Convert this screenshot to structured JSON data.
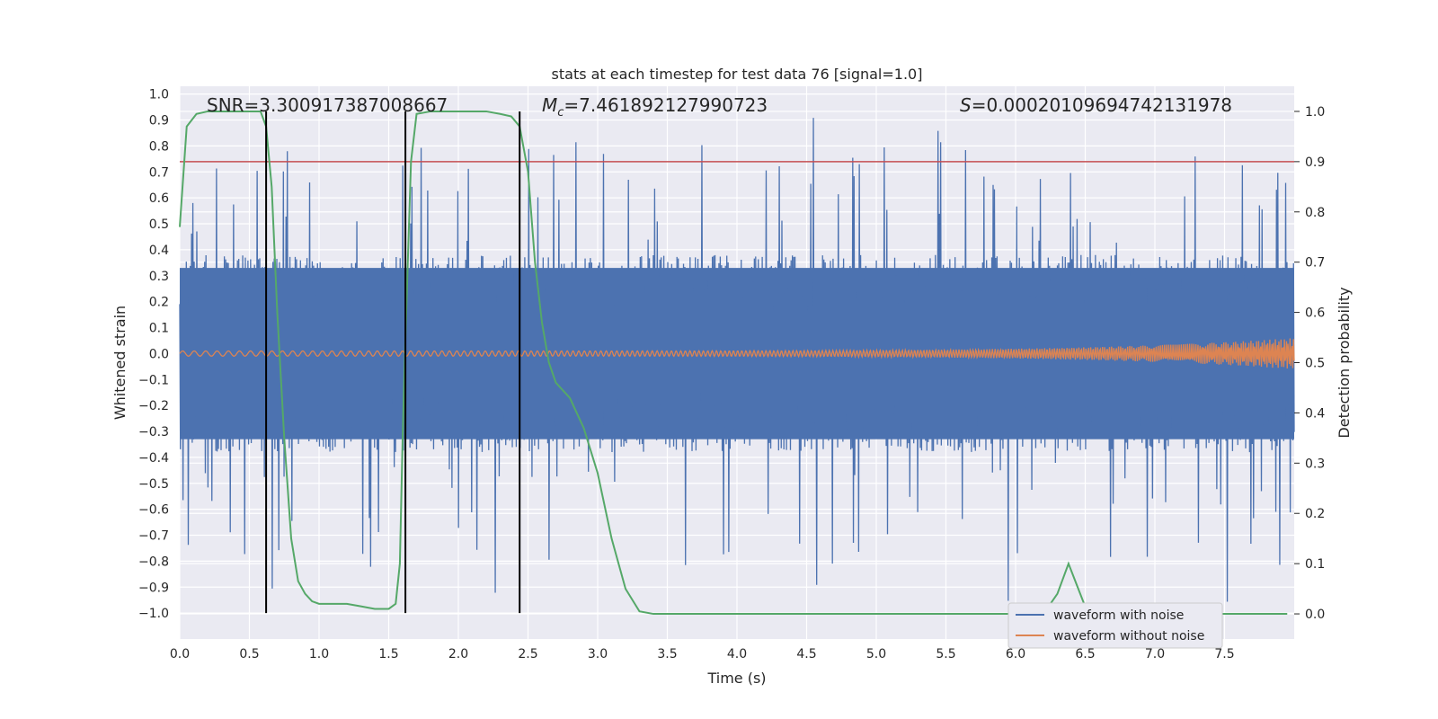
{
  "chart_data": {
    "type": "line",
    "title": "stats at each timestep for test data 76 [signal=1.0]",
    "xlabel": "Time (s)",
    "ylabel_left": "Whitened strain",
    "ylabel_right": "Detection probability",
    "xlim": [
      0.0,
      8.0
    ],
    "ylim_left": [
      -1.1,
      1.03
    ],
    "ylim_right": [
      -0.05,
      1.05
    ],
    "x_ticks": [
      "0.0",
      "0.5",
      "1.0",
      "1.5",
      "2.0",
      "2.5",
      "3.0",
      "3.5",
      "4.0",
      "4.5",
      "5.0",
      "5.5",
      "6.0",
      "6.5",
      "7.0",
      "7.5"
    ],
    "y_left_ticks": [
      "1.0",
      "0.9",
      "0.8",
      "0.7",
      "0.6",
      "0.5",
      "0.4",
      "0.3",
      "0.2",
      "0.1",
      "0.0",
      "−0.1",
      "−0.2",
      "−0.3",
      "−0.4",
      "−0.5",
      "−0.6",
      "−0.7",
      "−0.8",
      "−0.9",
      "−1.0"
    ],
    "y_right_ticks": [
      "1.0",
      "0.9",
      "0.8",
      "0.7",
      "0.6",
      "0.5",
      "0.4",
      "0.3",
      "0.2",
      "0.1",
      "0.0"
    ],
    "annotations": {
      "snr": "SNR=3.300917387008667",
      "mc_symbol": "M",
      "mc_sub": "c",
      "mc_value": "=7.461892127990723",
      "s_symbol": "S",
      "s_value": "=0.00020109694742131978"
    },
    "legend": {
      "placement": "lower-right",
      "entries": [
        "waveform with noise",
        "waveform without noise"
      ]
    },
    "threshold": 0.9,
    "vertical_lines_x": [
      0.62,
      1.62,
      2.44
    ],
    "series": [
      {
        "name": "waveform with noise",
        "color": "#4c72b0",
        "axis": "left",
        "style": "dense noisy strain, typical range about ±0.35, spikes up to ±0.9"
      },
      {
        "name": "waveform without noise",
        "color": "#dd8452",
        "axis": "left",
        "x_end": 8.0,
        "amplitude_start": 0.01,
        "amplitude_end": 0.06
      },
      {
        "color": "#55a868",
        "axis": "right",
        "x": [
          0.0,
          0.05,
          0.12,
          0.2,
          0.3,
          0.4,
          0.5,
          0.58,
          0.62,
          0.66,
          0.7,
          0.75,
          0.8,
          0.85,
          0.9,
          0.95,
          1.0,
          1.05,
          1.1,
          1.2,
          1.3,
          1.4,
          1.5,
          1.55,
          1.58,
          1.6,
          1.62,
          1.66,
          1.7,
          1.8,
          2.0,
          2.2,
          2.3,
          2.38,
          2.44,
          2.5,
          2.55,
          2.6,
          2.65,
          2.7,
          2.8,
          2.9,
          3.0,
          3.1,
          3.2,
          3.3,
          3.4,
          3.5,
          4.0,
          5.0,
          6.0,
          6.2,
          6.3,
          6.38,
          6.45,
          6.52,
          6.6,
          7.0,
          7.5,
          7.95
        ],
        "values": [
          0.77,
          0.97,
          0.995,
          1.0,
          1.0,
          1.0,
          1.0,
          1.0,
          0.97,
          0.85,
          0.6,
          0.35,
          0.15,
          0.065,
          0.04,
          0.025,
          0.02,
          0.02,
          0.02,
          0.02,
          0.015,
          0.01,
          0.01,
          0.02,
          0.1,
          0.35,
          0.55,
          0.9,
          0.995,
          1.0,
          1.0,
          1.0,
          0.995,
          0.99,
          0.97,
          0.88,
          0.7,
          0.58,
          0.5,
          0.46,
          0.43,
          0.37,
          0.28,
          0.15,
          0.05,
          0.005,
          0.0,
          0.0,
          0.0,
          0.0,
          0.0,
          0.0,
          0.04,
          0.1,
          0.05,
          0.0,
          0.0,
          0.0,
          0.0,
          0.0
        ]
      },
      {
        "color": "#c44e52",
        "axis": "right",
        "type": "hline",
        "value": 0.9
      }
    ]
  }
}
